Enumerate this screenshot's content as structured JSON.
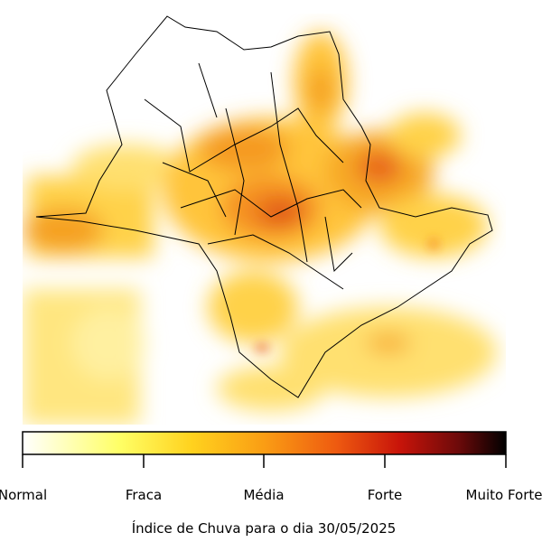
{
  "map": {
    "caption": "Índice de Chuva para o dia 30/05/2025",
    "colorbar": {
      "labels": [
        "Normal",
        "Fraca",
        "Média",
        "Forte",
        "Muito Forte"
      ]
    }
  }
}
